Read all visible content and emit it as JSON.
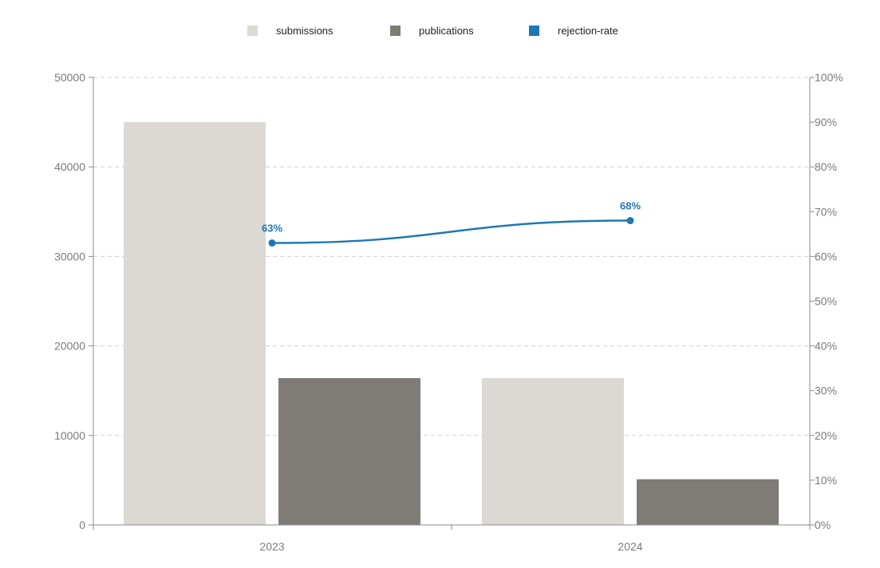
{
  "chart_data": {
    "type": "bar",
    "categories": [
      "2023",
      "2024"
    ],
    "series": [
      {
        "name": "submissions",
        "kind": "bar",
        "axis": "left",
        "color": "#dcd9d5",
        "values": [
          45000,
          16400
        ]
      },
      {
        "name": "publications",
        "kind": "bar",
        "axis": "left",
        "color": "#7f7b77",
        "values": [
          16400,
          5100
        ]
      },
      {
        "name": "rejection-rate",
        "kind": "line",
        "axis": "right",
        "color": "#1f77b4",
        "values": [
          63,
          68
        ],
        "labels": [
          "63%",
          "68%"
        ]
      }
    ],
    "y_left": {
      "min": 0,
      "max": 50000,
      "ticks": [
        "0",
        "10000",
        "20000",
        "30000",
        "40000",
        "50000"
      ]
    },
    "y_right": {
      "min": 0,
      "max": 100,
      "ticks": [
        "0%",
        "10%",
        "20%",
        "30%",
        "40%",
        "50%",
        "60%",
        "70%",
        "80%",
        "90%",
        "100%"
      ]
    },
    "grid": true,
    "legend": "top-center",
    "title": "",
    "xlabel": "",
    "ylabel": ""
  }
}
